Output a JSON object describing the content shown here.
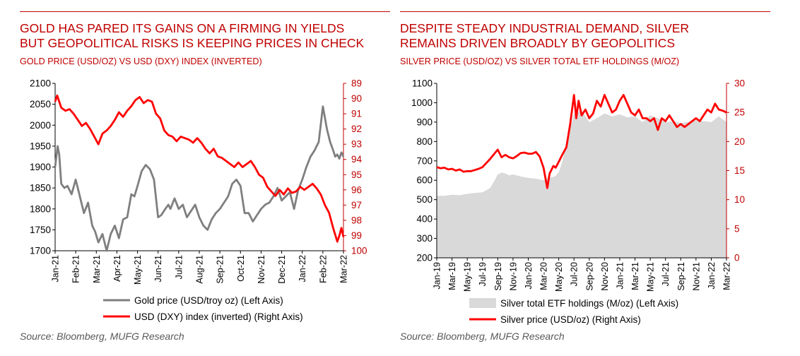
{
  "left_panel": {
    "title_line1": "GOLD HAS PARED ITS GAINS ON A FIRMING IN YIELDS",
    "title_line2": "BUT GEOPOLITICAL RISKS IS KEEPING PRICES IN CHECK",
    "subtitle": "GOLD PRICE (USD/OZ) VS USD (DXY) INDEX (INVERTED)",
    "source": "Source: Bloomberg, MUFG Research",
    "legend": [
      "Gold price (USD/troy oz) (Left Axis)",
      "USD (DXY) index (inverted) (Right Axis)"
    ]
  },
  "right_panel": {
    "title_line1": "DESPITE STEADY INDUSTRIAL DEMAND, SILVER",
    "title_line2": "REMAINS DRIVEN BROADLY BY GEOPOLITICS",
    "subtitle": "SILVER PRICE (USD/OZ) VS SILVER TOTAL ETF HOLDINGS (M/OZ)",
    "source": "Source: Bloomberg, MUFG Research",
    "legend": [
      "Silver total ETF holdings (M/oz) (Left Axis)",
      "Silver price (USD/oz) (Right Axis)"
    ]
  },
  "colors": {
    "accent": "#c00000",
    "gold_line": "#7f7f7f",
    "usd_line": "#ff0000",
    "silver_line": "#ff0000",
    "etf_area": "#d9d9d9"
  },
  "chart_data": [
    {
      "type": "line",
      "x_labels": [
        "Jan-21",
        "Feb-21",
        "Mar-21",
        "Apr-21",
        "May-21",
        "Jun-21",
        "Jul-21",
        "Aug-21",
        "Sep-21",
        "Oct-21",
        "Nov-21",
        "Dec-21",
        "Jan-22",
        "Feb-22",
        "Mar-22"
      ],
      "left_axis": {
        "ticks": [
          1700,
          1750,
          1800,
          1850,
          1900,
          1950,
          2000,
          2050,
          2100
        ],
        "range": [
          1700,
          2100
        ]
      },
      "right_axis": {
        "ticks": [
          89,
          90,
          91,
          92,
          93,
          94,
          95,
          96,
          97,
          98,
          99,
          100
        ],
        "range": [
          89,
          100
        ],
        "inverted": true
      },
      "series": [
        {
          "name": "Gold price (USD/troy oz) (Left Axis)",
          "axis": "left",
          "x": [
            0,
            0.12,
            0.2,
            0.3,
            0.45,
            0.6,
            0.8,
            1.0,
            1.2,
            1.4,
            1.6,
            1.8,
            1.95,
            2.1,
            2.3,
            2.5,
            2.7,
            2.9,
            3.1,
            3.3,
            3.5,
            3.7,
            3.85,
            4.0,
            4.2,
            4.4,
            4.6,
            4.8,
            5.0,
            5.15,
            5.35,
            5.5,
            5.6,
            5.8,
            6.0,
            6.2,
            6.4,
            6.6,
            6.8,
            7.0,
            7.2,
            7.4,
            7.6,
            7.8,
            8.0,
            8.2,
            8.4,
            8.6,
            8.8,
            9.0,
            9.2,
            9.4,
            9.6,
            9.8,
            10.0,
            10.2,
            10.4,
            10.6,
            10.8,
            11.0,
            11.2,
            11.4,
            11.6,
            11.8,
            12.0,
            12.2,
            12.4,
            12.6,
            12.8,
            13.0,
            13.2,
            13.35,
            13.5,
            13.6,
            13.7,
            13.8,
            13.9,
            14.0
          ],
          "values": [
            1900,
            1950,
            1930,
            1860,
            1850,
            1855,
            1835,
            1870,
            1830,
            1790,
            1815,
            1760,
            1745,
            1720,
            1740,
            1700,
            1740,
            1760,
            1730,
            1775,
            1780,
            1835,
            1830,
            1855,
            1890,
            1905,
            1895,
            1870,
            1780,
            1785,
            1800,
            1810,
            1800,
            1825,
            1800,
            1810,
            1780,
            1795,
            1810,
            1780,
            1760,
            1750,
            1775,
            1790,
            1800,
            1815,
            1830,
            1860,
            1870,
            1855,
            1790,
            1790,
            1770,
            1785,
            1800,
            1810,
            1815,
            1830,
            1850,
            1820,
            1830,
            1840,
            1800,
            1845,
            1870,
            1900,
            1925,
            1940,
            1960,
            2045,
            1990,
            1960,
            1940,
            1925,
            1930,
            1920,
            1935,
            1925
          ]
        },
        {
          "name": "USD (DXY) index (inverted) (Right Axis)",
          "axis": "right",
          "x": [
            0,
            0.1,
            0.3,
            0.5,
            0.7,
            0.9,
            1.1,
            1.3,
            1.5,
            1.7,
            1.9,
            2.1,
            2.3,
            2.5,
            2.7,
            2.9,
            3.1,
            3.3,
            3.5,
            3.7,
            3.9,
            4.1,
            4.3,
            4.5,
            4.7,
            4.9,
            5.1,
            5.3,
            5.5,
            5.7,
            5.9,
            6.1,
            6.3,
            6.5,
            6.7,
            6.9,
            7.1,
            7.3,
            7.5,
            7.7,
            7.9,
            8.1,
            8.3,
            8.5,
            8.7,
            8.9,
            9.1,
            9.3,
            9.5,
            9.7,
            9.9,
            10.1,
            10.3,
            10.5,
            10.7,
            10.9,
            11.1,
            11.3,
            11.5,
            11.7,
            11.9,
            12.1,
            12.3,
            12.5,
            12.7,
            12.9,
            13.1,
            13.3,
            13.5,
            13.7,
            13.8,
            13.9,
            14.0
          ],
          "values": [
            90.2,
            89.8,
            90.6,
            90.8,
            90.7,
            91.0,
            91.4,
            91.8,
            91.6,
            92.0,
            92.5,
            93.0,
            92.3,
            92.1,
            91.8,
            91.4,
            90.9,
            91.2,
            90.8,
            90.5,
            90.1,
            89.9,
            90.3,
            90.1,
            90.2,
            91.0,
            91.3,
            92.1,
            92.4,
            92.5,
            92.8,
            92.5,
            92.6,
            92.7,
            92.9,
            92.6,
            92.9,
            93.3,
            93.6,
            93.3,
            93.8,
            93.9,
            94.1,
            94.3,
            94.5,
            94.2,
            94.5,
            94.3,
            94.1,
            94.5,
            95.0,
            95.2,
            95.8,
            96.1,
            96.4,
            96.0,
            96.3,
            95.9,
            96.2,
            96.1,
            95.8,
            96.0,
            95.8,
            95.6,
            95.9,
            96.3,
            97.0,
            97.5,
            98.5,
            99.4,
            99.0,
            98.5,
            99.1
          ]
        }
      ]
    },
    {
      "type": "area",
      "x_labels": [
        "Jan-19",
        "Mar-19",
        "May-19",
        "Jul-19",
        "Sep-19",
        "Nov-19",
        "Jan-20",
        "Mar-20",
        "May-20",
        "Jul-20",
        "Sep-20",
        "Nov-20",
        "Jan-21",
        "Mar-21",
        "May-21",
        "Jul-21",
        "Sep-21",
        "Nov-21",
        "Jan-22",
        "Mar-22"
      ],
      "left_axis": {
        "ticks": [
          200,
          300,
          400,
          500,
          600,
          700,
          800,
          900,
          1000,
          1100
        ],
        "range": [
          200,
          1100
        ]
      },
      "right_axis": {
        "ticks": [
          0,
          5,
          10,
          15,
          20,
          25,
          30
        ],
        "range": [
          0,
          30
        ]
      },
      "series": [
        {
          "name": "Silver total ETF holdings (M/oz) (Left Axis)",
          "axis": "left",
          "type": "area",
          "x": [
            0,
            1,
            2,
            3,
            4,
            5,
            6,
            7,
            7.6,
            8,
            8.5,
            9,
            9.5,
            10,
            11,
            12,
            13,
            14,
            14.5,
            15,
            15.5,
            16,
            16.5,
            17,
            18,
            19,
            20,
            21,
            22,
            23,
            24,
            25,
            26,
            27,
            28,
            29,
            30,
            31,
            32,
            33,
            34,
            35,
            36,
            37,
            38
          ],
          "values": [
            520,
            520,
            525,
            523,
            530,
            535,
            538,
            560,
            600,
            630,
            640,
            635,
            625,
            630,
            620,
            612,
            608,
            600,
            610,
            615,
            620,
            640,
            700,
            800,
            940,
            960,
            900,
            920,
            945,
            930,
            940,
            925,
            930,
            900,
            935,
            920,
            900,
            905,
            895,
            900,
            910,
            905,
            900,
            930,
            900
          ]
        },
        {
          "name": "Silver price (USD/oz) (Right Axis)",
          "axis": "right",
          "type": "line",
          "x": [
            0,
            0.5,
            1,
            1.5,
            2,
            2.5,
            3,
            3.5,
            4,
            4.5,
            5,
            5.5,
            6,
            6.5,
            7,
            7.5,
            8,
            8.5,
            9,
            9.5,
            10,
            10.5,
            11,
            11.5,
            12,
            12.5,
            13,
            13.5,
            14,
            14.5,
            14.8,
            15,
            15.3,
            15.6,
            16,
            16.5,
            17,
            17.5,
            18,
            18.3,
            18.6,
            19,
            19.5,
            20,
            20.5,
            21,
            21.5,
            22,
            22.5,
            23,
            23.5,
            24,
            24.5,
            25,
            25.5,
            26,
            26.5,
            27,
            27.5,
            28,
            28.5,
            29,
            29.5,
            30,
            30.5,
            31,
            31.5,
            32,
            32.5,
            33,
            33.5,
            34,
            34.5,
            35,
            35.5,
            36,
            36.5,
            37,
            37.5,
            38
          ],
          "values": [
            15.6,
            15.4,
            15.5,
            15.2,
            15.3,
            15.0,
            15.2,
            14.8,
            14.9,
            14.9,
            15.1,
            15.3,
            15.6,
            16.3,
            17.0,
            17.8,
            18.6,
            17.3,
            17.7,
            17.3,
            17.1,
            17.5,
            18.0,
            18.1,
            17.9,
            17.9,
            18.2,
            17.4,
            15.5,
            12.0,
            14.5,
            15.0,
            15.8,
            15.5,
            16.5,
            17.8,
            19.0,
            23.0,
            28.0,
            24.0,
            27.0,
            24.5,
            25.5,
            24.0,
            24.8,
            27.0,
            26.0,
            28.0,
            26.5,
            25.0,
            25.5,
            27.0,
            28.0,
            26.5,
            25.0,
            24.5,
            25.5,
            24.0,
            24.0,
            23.5,
            24.0,
            22.0,
            24.0,
            23.5,
            24.5,
            23.5,
            22.5,
            23.0,
            22.5,
            23.0,
            23.5,
            24.0,
            23.5,
            24.5,
            25.5,
            25.0,
            26.5,
            25.5,
            25.3,
            25.0
          ]
        }
      ]
    }
  ]
}
